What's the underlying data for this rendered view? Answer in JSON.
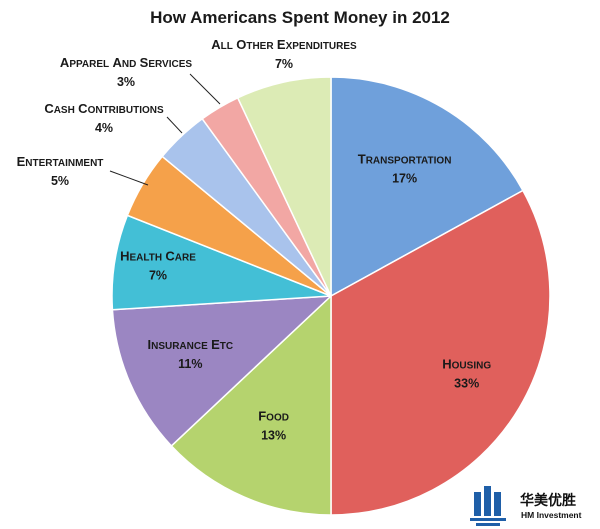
{
  "chart_data": {
    "type": "pie",
    "title": "How Americans Spent Money in 2012",
    "slices": [
      {
        "label": "Transportation",
        "pct_label": "17%",
        "value": 17,
        "color": "#6fa0db"
      },
      {
        "label": "Housing",
        "pct_label": "33%",
        "value": 33,
        "color": "#e0605c"
      },
      {
        "label": "Food",
        "pct_label": "13%",
        "value": 13,
        "color": "#b5d36e"
      },
      {
        "label": "Insurance etc",
        "pct_label": "11%",
        "value": 11,
        "color": "#9b86c2"
      },
      {
        "label": "Health care",
        "pct_label": "7%",
        "value": 7,
        "color": "#43bfd6"
      },
      {
        "label": "Entertainment",
        "pct_label": "5%",
        "value": 5,
        "color": "#f5a14a"
      },
      {
        "label": "Cash contributions",
        "pct_label": "4%",
        "value": 4,
        "color": "#a9c3ec"
      },
      {
        "label": "Apparel and services",
        "pct_label": "3%",
        "value": 3,
        "color": "#f2a7a4"
      },
      {
        "label": "All other expenditures",
        "pct_label": "7%",
        "value": 7,
        "color": "#dcebb5"
      }
    ]
  },
  "watermark": {
    "name_cn": "华美优胜",
    "name_en": "HM Investment",
    "logo_color": "#1f5fa8"
  }
}
